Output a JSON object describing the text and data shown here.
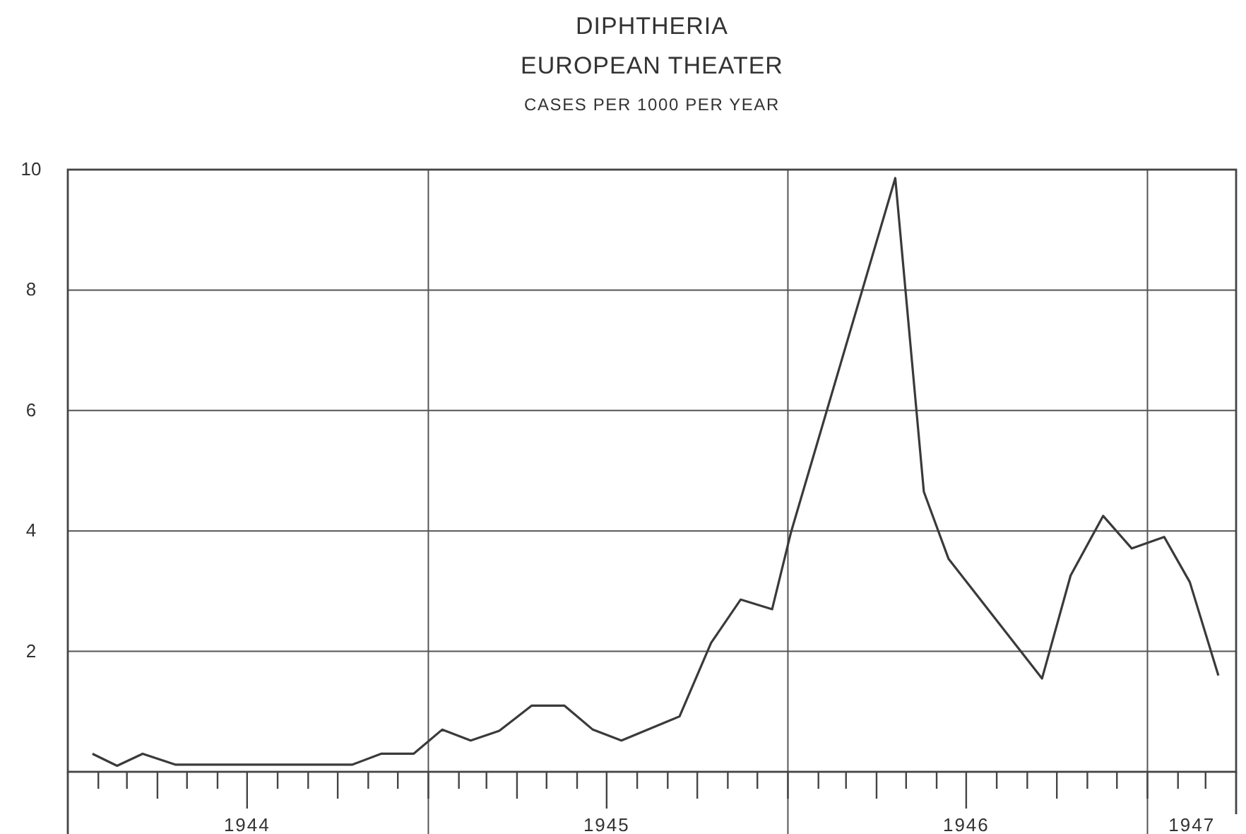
{
  "chart_data": {
    "type": "line",
    "title": "DIPHTHERIA",
    "subtitle": "EUROPEAN THEATER",
    "ylabel": "CASES PER 1000 PER YEAR",
    "x": [
      "1944-01-26",
      "1944-02-20",
      "1944-03-17",
      "1944-04-19",
      "1944-10-16",
      "1944-11-14",
      "1944-12-17",
      "1945-01-15",
      "1945-02-13",
      "1945-03-14",
      "1945-04-16",
      "1945-05-19",
      "1945-06-17",
      "1945-07-16",
      "1945-09-13",
      "1945-10-15",
      "1945-11-14",
      "1945-12-16",
      "1946-01-04",
      "1946-04-20",
      "1946-05-19",
      "1946-06-13",
      "1946-09-16",
      "1946-10-15",
      "1946-11-17",
      "1946-12-16",
      "1947-01-18",
      "1947-02-13",
      "1947-03-14"
    ],
    "series": [
      {
        "color": "#3a3a3a",
        "values": [
          0.3,
          0.1,
          0.3,
          0.12,
          0.12,
          0.3,
          0.3,
          0.7,
          0.52,
          0.68,
          1.1,
          1.1,
          0.7,
          0.52,
          0.92,
          2.14,
          2.86,
          2.7,
          3.97,
          9.86,
          4.65,
          3.54,
          1.55,
          3.26,
          4.25,
          3.71,
          3.9,
          3.15,
          1.6
        ]
      }
    ],
    "xlim": [
      "1944-01-01",
      "1947-04-01"
    ],
    "xticks": [
      {
        "value": "1944-02",
        "label": null
      },
      {
        "value": "1944-03",
        "label": null
      },
      {
        "value": "1944-04",
        "label": null
      },
      {
        "value": "1944-05",
        "label": null
      },
      {
        "value": "1944-06",
        "label": null
      },
      {
        "value": "1944-07",
        "label": "1944"
      },
      {
        "value": "1944-08",
        "label": null
      },
      {
        "value": "1944-09",
        "label": null
      },
      {
        "value": "1944-10",
        "label": null
      },
      {
        "value": "1944-11",
        "label": null
      },
      {
        "value": "1944-12",
        "label": null
      },
      {
        "value": "1945-01",
        "label": null
      },
      {
        "value": "1945-02",
        "label": null
      },
      {
        "value": "1945-03",
        "label": null
      },
      {
        "value": "1945-04",
        "label": null
      },
      {
        "value": "1945-05",
        "label": null
      },
      {
        "value": "1945-06",
        "label": null
      },
      {
        "value": "1945-07",
        "label": "1945"
      },
      {
        "value": "1945-08",
        "label": null
      },
      {
        "value": "1945-09",
        "label": null
      },
      {
        "value": "1945-10",
        "label": null
      },
      {
        "value": "1945-11",
        "label": null
      },
      {
        "value": "1945-12",
        "label": null
      },
      {
        "value": "1946-01",
        "label": null
      },
      {
        "value": "1946-02",
        "label": null
      },
      {
        "value": "1946-03",
        "label": null
      },
      {
        "value": "1946-04",
        "label": null
      },
      {
        "value": "1946-05",
        "label": null
      },
      {
        "value": "1946-06",
        "label": null
      },
      {
        "value": "1946-07",
        "label": "1946"
      },
      {
        "value": "1946-08",
        "label": null
      },
      {
        "value": "1946-09",
        "label": null
      },
      {
        "value": "1946-10",
        "label": null
      },
      {
        "value": "1946-11",
        "label": null
      },
      {
        "value": "1946-12",
        "label": null
      },
      {
        "value": "1947-01",
        "label": null
      },
      {
        "value": "1947-02",
        "label": null
      },
      {
        "value": "1947-02-15",
        "label": "1947"
      },
      {
        "value": "1947-03",
        "label": null
      }
    ],
    "ylim": [
      0,
      10
    ],
    "yticks": [
      {
        "value": 0,
        "label": null
      },
      2,
      4,
      6,
      8,
      10
    ],
    "grid": true
  }
}
